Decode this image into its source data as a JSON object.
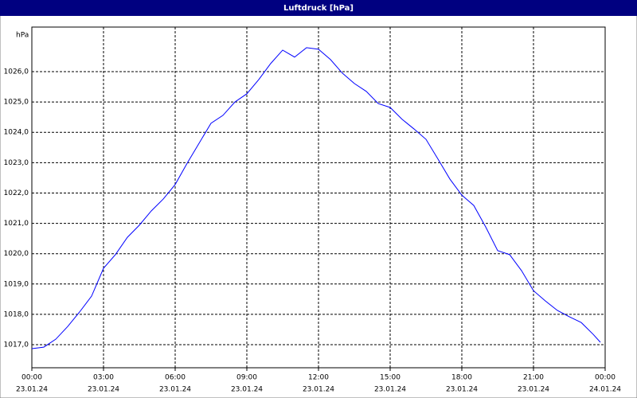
{
  "chart_data": {
    "type": "line",
    "title": "Luftdruck [hPa]",
    "y_unit": "hPa",
    "x": [
      0,
      0.5,
      1,
      1.5,
      2,
      2.5,
      3,
      3.5,
      4,
      4.5,
      5,
      5.5,
      6,
      6.5,
      7,
      7.5,
      8,
      8.5,
      9,
      9.5,
      10,
      10.5,
      11,
      11.5,
      12,
      12.5,
      13,
      13.5,
      14,
      14.5,
      15,
      15.5,
      16,
      16.5,
      17,
      17.5,
      18,
      18.5,
      19,
      19.5,
      20,
      20.5,
      21,
      21.5,
      22,
      22.5,
      23,
      23.5,
      23.8
    ],
    "series": [
      {
        "name": "Luftdruck",
        "color": "#0000ff",
        "values": [
          1016.87,
          1016.92,
          1017.18,
          1017.6,
          1018.08,
          1018.6,
          1019.52,
          1019.97,
          1020.54,
          1020.94,
          1021.41,
          1021.8,
          1022.28,
          1022.98,
          1023.64,
          1024.3,
          1024.56,
          1025.0,
          1025.27,
          1025.74,
          1026.27,
          1026.71,
          1026.48,
          1026.79,
          1026.74,
          1026.4,
          1025.95,
          1025.61,
          1025.35,
          1024.95,
          1024.82,
          1024.43,
          1024.11,
          1023.77,
          1023.12,
          1022.46,
          1021.93,
          1021.59,
          1020.88,
          1020.1,
          1019.97,
          1019.44,
          1018.78,
          1018.44,
          1018.13,
          1017.92,
          1017.73,
          1017.34,
          1017.08
        ]
      }
    ],
    "xlim": [
      0,
      24
    ],
    "ylim": [
      1016.24,
      1027.47
    ],
    "xticks": [
      {
        "value": 0,
        "label": "00:00",
        "date": "23.01.24"
      },
      {
        "value": 3,
        "label": "03:00",
        "date": "23.01.24"
      },
      {
        "value": 6,
        "label": "06:00",
        "date": "23.01.24"
      },
      {
        "value": 9,
        "label": "09:00",
        "date": "23.01.24"
      },
      {
        "value": 12,
        "label": "12:00",
        "date": "23.01.24"
      },
      {
        "value": 15,
        "label": "15:00",
        "date": "23.01.24"
      },
      {
        "value": 18,
        "label": "18:00",
        "date": "23.01.24"
      },
      {
        "value": 21,
        "label": "21:00",
        "date": "23.01.24"
      },
      {
        "value": 24,
        "label": "00:00",
        "date": "24.01.24"
      }
    ],
    "yticks": [
      {
        "value": 1017,
        "label": "1017,0"
      },
      {
        "value": 1018,
        "label": "1018,0"
      },
      {
        "value": 1019,
        "label": "1019,0"
      },
      {
        "value": 1020,
        "label": "1020,0"
      },
      {
        "value": 1021,
        "label": "1021,0"
      },
      {
        "value": 1022,
        "label": "1022,0"
      },
      {
        "value": 1023,
        "label": "1023,0"
      },
      {
        "value": 1024,
        "label": "1024,0"
      },
      {
        "value": 1025,
        "label": "1025,0"
      },
      {
        "value": 1026,
        "label": "1026,0"
      }
    ],
    "grid": true
  }
}
